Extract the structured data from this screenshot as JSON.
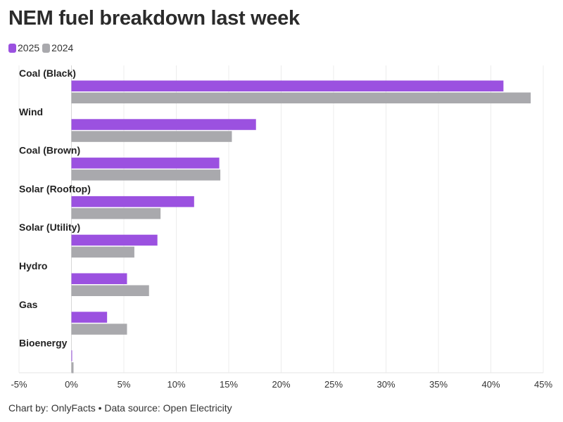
{
  "title": "NEM fuel breakdown last week",
  "legend": [
    {
      "label": "2025",
      "color": "#9b51e0"
    },
    {
      "label": "2024",
      "color": "#a9a9ad"
    }
  ],
  "footer": "Chart by: OnlyFacts • Data source: Open Electricity",
  "chart_data": {
    "type": "bar",
    "orientation": "horizontal",
    "title": "NEM fuel breakdown last week",
    "categories": [
      "Coal (Black)",
      "Wind",
      "Coal (Brown)",
      "Solar (Rooftop)",
      "Solar (Utility)",
      "Hydro",
      "Gas",
      "Bioenergy"
    ],
    "series": [
      {
        "name": "2025",
        "color": "#9b51e0",
        "values": [
          41.2,
          17.6,
          14.1,
          11.7,
          8.2,
          5.3,
          3.4,
          0.05
        ]
      },
      {
        "name": "2024",
        "color": "#a9a9ad",
        "values": [
          43.8,
          15.3,
          14.2,
          8.5,
          6.0,
          7.4,
          5.3,
          0.2
        ]
      }
    ],
    "xlim": [
      -5,
      45
    ],
    "xticks": [
      -5,
      0,
      5,
      10,
      15,
      20,
      25,
      30,
      35,
      40,
      45
    ],
    "xtick_labels": [
      "-5%",
      "0%",
      "5%",
      "10%",
      "15%",
      "20%",
      "25%",
      "30%",
      "35%",
      "40%",
      "45%"
    ],
    "grid": true,
    "legend_position": "top-left"
  }
}
